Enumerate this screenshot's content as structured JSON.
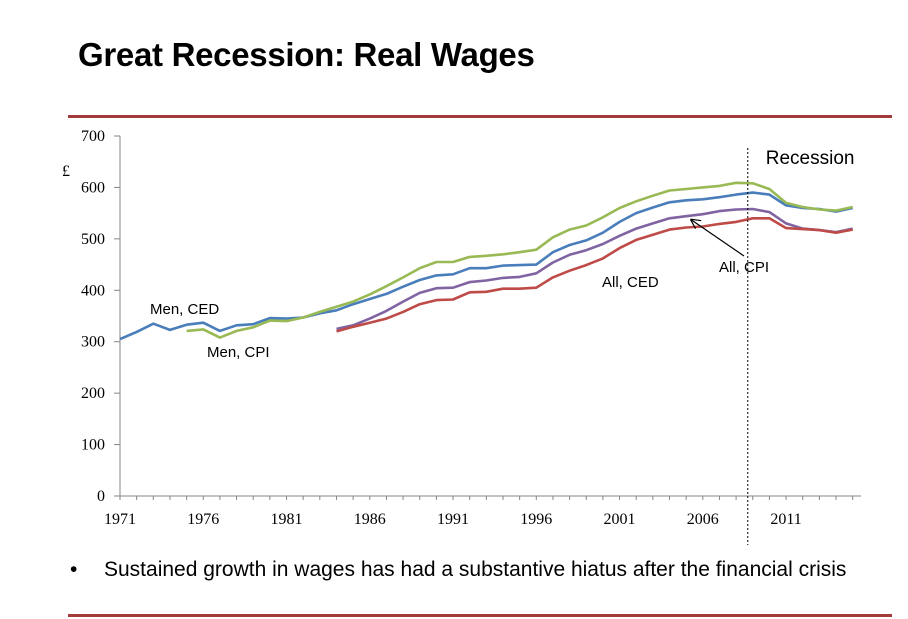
{
  "slide": {
    "title": "Great Recession: Real Wages",
    "bullet_symbol": "•",
    "bullet_text": "Sustained growth in wages has had a substantive hiatus after the financial crisis"
  },
  "chart_data": {
    "type": "line",
    "y_unit_label": "£",
    "ylim": [
      0,
      700
    ],
    "yticks": [
      0,
      100,
      200,
      300,
      400,
      500,
      600,
      700
    ],
    "xlim": [
      1971,
      2015.5
    ],
    "xticks": [
      1971,
      1976,
      1981,
      1986,
      1991,
      1996,
      2001,
      2006,
      2011
    ],
    "grid": false,
    "legend": "none",
    "recession_marker": {
      "x": 2008.7,
      "label": "Recession"
    },
    "series": [
      {
        "name": "Men, CED",
        "color": "#4a7ebb",
        "x": [
          1971,
          1972,
          1973,
          1974,
          1975,
          1976,
          1977,
          1978,
          1979,
          1980,
          1981,
          1982,
          1983,
          1984,
          1985,
          1986,
          1987,
          1988,
          1989,
          1990,
          1991,
          1992,
          1993,
          1994,
          1995,
          1996,
          1997,
          1998,
          1999,
          2000,
          2001,
          2002,
          2003,
          2004,
          2005,
          2006,
          2007,
          2008,
          2009,
          2010,
          2011,
          2012,
          2013,
          2014,
          2015
        ],
        "y": [
          305,
          319,
          335,
          323,
          333,
          337,
          321,
          332,
          334,
          346,
          345,
          347,
          355,
          361,
          373,
          383,
          393,
          407,
          420,
          429,
          431,
          443,
          443,
          448,
          449,
          450,
          474,
          488,
          497,
          512,
          533,
          550,
          561,
          571,
          575,
          577,
          581,
          586,
          590,
          586,
          565,
          560,
          558,
          553,
          560
        ]
      },
      {
        "name": "Men, CPI",
        "color": "#98b954",
        "x": [
          1975,
          1976,
          1977,
          1978,
          1979,
          1980,
          1981,
          1982,
          1983,
          1984,
          1985,
          1986,
          1987,
          1988,
          1989,
          1990,
          1991,
          1992,
          1993,
          1994,
          1995,
          1996,
          1997,
          1998,
          1999,
          2000,
          2001,
          2002,
          2003,
          2004,
          2005,
          2006,
          2007,
          2008,
          2009,
          2010,
          2011,
          2012,
          2013,
          2014,
          2015
        ],
        "y": [
          321,
          324,
          308,
          321,
          328,
          341,
          340,
          347,
          358,
          368,
          378,
          392,
          408,
          425,
          443,
          455,
          455,
          465,
          467,
          470,
          474,
          479,
          503,
          518,
          526,
          542,
          560,
          573,
          584,
          594,
          597,
          600,
          603,
          609,
          608,
          597,
          570,
          562,
          557,
          555,
          562
        ]
      },
      {
        "name": "All, CPI",
        "color": "#8064a2",
        "x": [
          1984,
          1985,
          1986,
          1987,
          1988,
          1989,
          1990,
          1991,
          1992,
          1993,
          1994,
          1995,
          1996,
          1997,
          1998,
          1999,
          2000,
          2001,
          2002,
          2003,
          2004,
          2005,
          2006,
          2007,
          2008,
          2009,
          2010,
          2011,
          2012,
          2013,
          2014,
          2015
        ],
        "y": [
          325,
          332,
          345,
          360,
          378,
          395,
          404,
          405,
          416,
          419,
          424,
          426,
          433,
          454,
          469,
          478,
          490,
          506,
          520,
          530,
          540,
          544,
          548,
          554,
          557,
          558,
          552,
          530,
          520,
          517,
          513,
          520
        ]
      },
      {
        "name": "All, CED",
        "color": "#be4b48",
        "x": [
          1984,
          1985,
          1986,
          1987,
          1988,
          1989,
          1990,
          1991,
          1992,
          1993,
          1994,
          1995,
          1996,
          1997,
          1998,
          1999,
          2000,
          2001,
          2002,
          2003,
          2004,
          2005,
          2006,
          2007,
          2008,
          2009,
          2010,
          2011,
          2012,
          2013,
          2014,
          2015
        ],
        "y": [
          320,
          329,
          337,
          345,
          358,
          373,
          381,
          382,
          396,
          397,
          403,
          403,
          405,
          425,
          438,
          449,
          462,
          482,
          498,
          508,
          518,
          522,
          524,
          529,
          533,
          540,
          540,
          521,
          519,
          517,
          512,
          518
        ]
      }
    ],
    "annotations": [
      {
        "text": "Men, CED",
        "series": 0
      },
      {
        "text": "Men, CPI",
        "series": 1
      },
      {
        "text": "All, CED",
        "series": 3
      },
      {
        "text": "All, CPI",
        "series": 2,
        "arrow_to": {
          "x": 2005.3,
          "y": 545
        }
      }
    ]
  }
}
